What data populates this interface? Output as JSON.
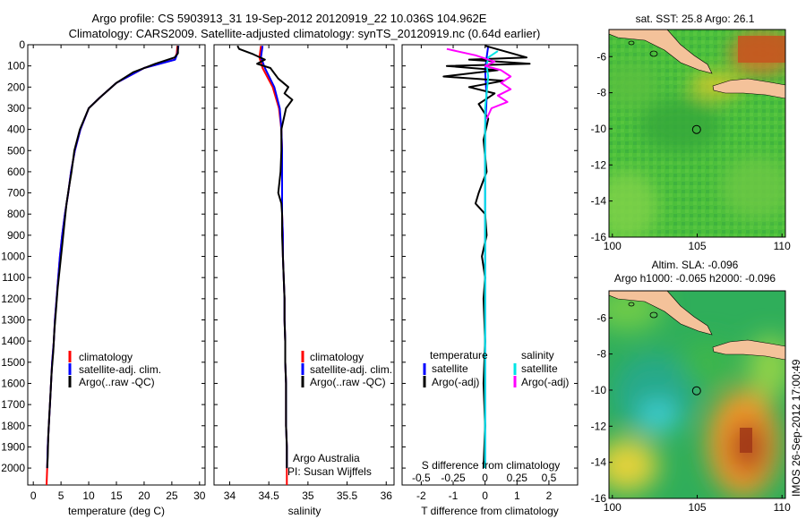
{
  "header": {
    "line1": "Argo profile: CS 5903913_31 19-Sep-2012 20120919_22 10.036S 104.962E",
    "line2": "Climatology: CARS2009. Satellite-adjusted climatology: synTS_20120919.nc (0.64d earlier)"
  },
  "timestamp": "IMOS 26-Sep-2012 17:00:49",
  "colors": {
    "climatology": "#ff0000",
    "satellite": "#0000ff",
    "argo": "#000000",
    "salinity_satellite": "#00e5e5",
    "salinity_argo": "#ff00ff",
    "land": "#f4c29a"
  },
  "chart_data": [
    {
      "id": "temperature",
      "type": "line",
      "xlabel": "temperature (deg C)",
      "xlim": [
        -1,
        31
      ],
      "xticks": [
        0,
        5,
        10,
        15,
        20,
        25,
        30
      ],
      "xticklabels": [
        "0",
        "5",
        "10",
        "15",
        "20",
        "25",
        "30"
      ],
      "ylim": [
        2080,
        0
      ],
      "yticks": [
        0,
        100,
        200,
        300,
        400,
        500,
        600,
        700,
        800,
        900,
        1000,
        1100,
        1200,
        1300,
        1400,
        1500,
        1600,
        1700,
        1800,
        1900,
        2000
      ],
      "yticklabels": [
        "0",
        "100",
        "200",
        "300",
        "400",
        "500",
        "600",
        "700",
        "800",
        "900",
        "1000",
        "1100",
        "1200",
        "1300",
        "1400",
        "1500",
        "1600",
        "1700",
        "1800",
        "1900",
        "2000"
      ],
      "legend": [
        "climatology",
        "satellite-adj. clim.",
        "Argo(..raw -QC)"
      ],
      "series": [
        {
          "name": "climatology",
          "color": "#ff0000",
          "points": [
            [
              26.0,
              5
            ],
            [
              25.9,
              40
            ],
            [
              25.5,
              70
            ],
            [
              20,
              110
            ],
            [
              15,
              180
            ],
            [
              12,
              250
            ],
            [
              10,
              300
            ],
            [
              8.5,
              400
            ],
            [
              7.5,
              500
            ],
            [
              6.8,
              600
            ],
            [
              6.3,
              700
            ],
            [
              5.7,
              800
            ],
            [
              5.2,
              900
            ],
            [
              4.8,
              1000
            ],
            [
              4.5,
              1100
            ],
            [
              4.2,
              1200
            ],
            [
              3.9,
              1300
            ],
            [
              3.7,
              1400
            ],
            [
              3.4,
              1500
            ],
            [
              3.2,
              1600
            ],
            [
              3.0,
              1700
            ],
            [
              2.8,
              1800
            ],
            [
              2.6,
              1900
            ],
            [
              2.5,
              2000
            ],
            [
              2.4,
              2080
            ]
          ]
        },
        {
          "name": "satellite-adj. clim.",
          "color": "#0000ff",
          "points": [
            [
              26.2,
              5
            ],
            [
              26.0,
              40
            ],
            [
              25.6,
              70
            ],
            [
              20,
              110
            ],
            [
              15,
              180
            ],
            [
              12,
              250
            ],
            [
              10,
              300
            ],
            [
              8.5,
              400
            ],
            [
              7.5,
              500
            ],
            [
              6.8,
              600
            ],
            [
              6.3,
              700
            ],
            [
              5.7,
              800
            ],
            [
              5.2,
              900
            ],
            [
              4.8,
              1000
            ],
            [
              4.5,
              1100
            ],
            [
              4.2,
              1200
            ],
            [
              3.9,
              1300
            ],
            [
              3.7,
              1400
            ],
            [
              3.4,
              1500
            ],
            [
              3.2,
              1600
            ],
            [
              3.0,
              1700
            ],
            [
              2.8,
              1800
            ],
            [
              2.6,
              1900
            ],
            [
              2.5,
              2000
            ]
          ]
        },
        {
          "name": "Argo(..raw -QC)",
          "color": "#000000",
          "points": [
            [
              26.1,
              5
            ],
            [
              26.1,
              40
            ],
            [
              25.5,
              60
            ],
            [
              22,
              90
            ],
            [
              18,
              130
            ],
            [
              15,
              180
            ],
            [
              12,
              250
            ],
            [
              10,
              300
            ],
            [
              8.4,
              400
            ],
            [
              7.4,
              500
            ],
            [
              6.9,
              600
            ],
            [
              6.4,
              680
            ],
            [
              6.0,
              750
            ],
            [
              5.6,
              850
            ],
            [
              5.2,
              950
            ],
            [
              4.8,
              1050
            ],
            [
              4.4,
              1150
            ],
            [
              4.1,
              1250
            ],
            [
              3.8,
              1350
            ],
            [
              3.6,
              1450
            ],
            [
              3.3,
              1550
            ],
            [
              3.1,
              1650
            ],
            [
              2.9,
              1750
            ],
            [
              2.7,
              1850
            ],
            [
              2.6,
              1950
            ],
            [
              2.5,
              2000
            ]
          ]
        }
      ]
    },
    {
      "id": "salinity",
      "type": "line",
      "xlabel": "salinity",
      "xlim": [
        33.8,
        36.1
      ],
      "xticks": [
        34,
        34.5,
        35,
        35.5,
        36
      ],
      "xticklabels": [
        "34",
        "34.5",
        "35",
        "35.5",
        "36"
      ],
      "ylim": [
        2080,
        0
      ],
      "legend": [
        "climatology",
        "satellite-adj. clim.",
        "Argo(..raw -QC)"
      ],
      "annotation": [
        "Argo Australia",
        "PI: Susan Wijffels"
      ],
      "series": [
        {
          "name": "climatology",
          "color": "#ff0000",
          "points": [
            [
              34.4,
              5
            ],
            [
              34.38,
              60
            ],
            [
              34.42,
              110
            ],
            [
              34.55,
              200
            ],
            [
              34.63,
              300
            ],
            [
              34.66,
              400
            ],
            [
              34.67,
              500
            ],
            [
              34.67,
              600
            ],
            [
              34.67,
              700
            ],
            [
              34.67,
              800
            ],
            [
              34.68,
              900
            ],
            [
              34.68,
              1000
            ],
            [
              34.69,
              1100
            ],
            [
              34.7,
              1200
            ],
            [
              34.7,
              1300
            ],
            [
              34.71,
              1400
            ],
            [
              34.71,
              1500
            ],
            [
              34.72,
              1600
            ],
            [
              34.72,
              1700
            ],
            [
              34.72,
              1800
            ],
            [
              34.73,
              1900
            ],
            [
              34.73,
              2000
            ],
            [
              34.73,
              2080
            ]
          ]
        },
        {
          "name": "satellite-adj. clim.",
          "color": "#0000ff",
          "points": [
            [
              34.42,
              5
            ],
            [
              34.4,
              60
            ],
            [
              34.45,
              110
            ],
            [
              34.57,
              200
            ],
            [
              34.64,
              300
            ],
            [
              34.66,
              400
            ],
            [
              34.67,
              500
            ],
            [
              34.67,
              600
            ],
            [
              34.67,
              700
            ],
            [
              34.67,
              800
            ],
            [
              34.68,
              900
            ],
            [
              34.68,
              1000
            ],
            [
              34.69,
              1100
            ],
            [
              34.7,
              1200
            ],
            [
              34.7,
              1300
            ],
            [
              34.71,
              1400
            ],
            [
              34.71,
              1500
            ],
            [
              34.72,
              1600
            ],
            [
              34.72,
              1700
            ],
            [
              34.72,
              1800
            ],
            [
              34.73,
              1900
            ],
            [
              34.73,
              2000
            ]
          ]
        },
        {
          "name": "Argo(..raw -QC)",
          "color": "#000000",
          "points": [
            [
              34.1,
              5
            ],
            [
              34.12,
              20
            ],
            [
              34.3,
              45
            ],
            [
              34.45,
              70
            ],
            [
              34.35,
              90
            ],
            [
              34.52,
              110
            ],
            [
              34.62,
              160
            ],
            [
              34.75,
              200
            ],
            [
              34.7,
              230
            ],
            [
              34.8,
              260
            ],
            [
              34.72,
              300
            ],
            [
              34.66,
              400
            ],
            [
              34.66,
              500
            ],
            [
              34.65,
              600
            ],
            [
              34.62,
              700
            ],
            [
              34.66,
              750
            ],
            [
              34.67,
              800
            ],
            [
              34.67,
              900
            ],
            [
              34.68,
              1000
            ],
            [
              34.69,
              1100
            ],
            [
              34.7,
              1200
            ],
            [
              34.7,
              1300
            ],
            [
              34.71,
              1400
            ],
            [
              34.71,
              1500
            ],
            [
              34.72,
              1600
            ],
            [
              34.72,
              1700
            ],
            [
              34.72,
              1800
            ],
            [
              34.73,
              1900
            ],
            [
              34.73,
              2000
            ]
          ]
        }
      ]
    },
    {
      "id": "difference",
      "type": "line",
      "xlabel": "T difference from climatology",
      "xlabel_top": "S difference from climatology",
      "xlim": [
        -2.6,
        2.9
      ],
      "xticks": [
        -2,
        -1,
        0,
        1,
        2
      ],
      "xticklabels": [
        "-2",
        "-1",
        "0",
        "1",
        "2"
      ],
      "sticks_values": [
        -0.5,
        -0.25,
        0,
        0.25,
        0.5
      ],
      "sticks": [
        "-0.5",
        "-0.25",
        "0",
        "0.25",
        "0.5"
      ],
      "ylim": [
        2080,
        0
      ],
      "legend_temperature": [
        "temperature",
        "satellite",
        "Argo(-adj)"
      ],
      "legend_salinity": [
        "salinity",
        "satellite",
        "Argo(-adj)"
      ],
      "series": [
        {
          "name": "temperature satellite",
          "color": "#0000ff",
          "points": [
            [
              0.1,
              5
            ],
            [
              0.05,
              60
            ],
            [
              0.0,
              120
            ],
            [
              0.05,
              250
            ],
            [
              0.0,
              400
            ],
            [
              0.0,
              800
            ],
            [
              0.0,
              1200
            ],
            [
              0.0,
              1600
            ],
            [
              0.0,
              2000
            ]
          ]
        },
        {
          "name": "temperature Argo(-adj)",
          "color": "#000000",
          "points": [
            [
              0.0,
              5
            ],
            [
              1.3,
              60
            ],
            [
              -0.5,
              70
            ],
            [
              1.4,
              90
            ],
            [
              -1.2,
              100
            ],
            [
              0.4,
              120
            ],
            [
              -1.3,
              150
            ],
            [
              0.6,
              170
            ],
            [
              -0.5,
              200
            ],
            [
              0.3,
              230
            ],
            [
              -0.2,
              280
            ],
            [
              0.1,
              350
            ],
            [
              -0.05,
              450
            ],
            [
              0.05,
              600
            ],
            [
              -0.2,
              700
            ],
            [
              -0.3,
              750
            ],
            [
              0.0,
              800
            ],
            [
              0.05,
              900
            ],
            [
              -0.1,
              1000
            ],
            [
              0.0,
              1100
            ],
            [
              -0.05,
              1200
            ],
            [
              0.0,
              1400
            ],
            [
              -0.05,
              1600
            ],
            [
              0.0,
              1800
            ],
            [
              -0.05,
              2000
            ]
          ]
        },
        {
          "name": "salinity satellite",
          "color": "#00e5e5",
          "points": [
            [
              0.4,
              30
            ],
            [
              0.1,
              60
            ],
            [
              0.05,
              100
            ],
            [
              0.1,
              150
            ],
            [
              0.0,
              300
            ],
            [
              0.0,
              600
            ],
            [
              0.0,
              1000
            ],
            [
              0.0,
              1500
            ],
            [
              0.0,
              2000
            ]
          ]
        },
        {
          "name": "salinity Argo(-adj)",
          "color": "#ff00ff",
          "points": [
            [
              -1.2,
              20
            ],
            [
              -0.3,
              50
            ],
            [
              0.3,
              80
            ],
            [
              0.0,
              100
            ],
            [
              0.5,
              120
            ],
            [
              0.8,
              150
            ],
            [
              0.5,
              180
            ],
            [
              0.8,
              210
            ],
            [
              0.4,
              240
            ],
            [
              0.7,
              270
            ],
            [
              0.2,
              300
            ],
            [
              0.05,
              350
            ]
          ]
        }
      ]
    },
    {
      "id": "sst-map",
      "type": "heatmap",
      "title": "sat. SST: 25.8 Argo: 26.1",
      "xlim": [
        99.8,
        110.2
      ],
      "ylim": [
        -16,
        -4.5
      ],
      "xticks": [
        100,
        105,
        110
      ],
      "xticklabels": [
        "100",
        "105",
        "110"
      ],
      "yticks": [
        -6,
        -8,
        -10,
        -12,
        -14,
        -16
      ],
      "yticklabels": [
        "-6",
        "-8",
        "-10",
        "-12",
        "-14",
        "-16"
      ],
      "argo_position": [
        104.962,
        -10.036
      ]
    },
    {
      "id": "sla-map",
      "type": "heatmap",
      "title_line1": "Altim. SLA: -0.096",
      "title_line2": "Argo h1000: -0.065 h2000: -0.096",
      "xlim": [
        99.8,
        110.2
      ],
      "ylim": [
        -16,
        -4.5
      ],
      "xticks": [
        100,
        105,
        110
      ],
      "xticklabels": [
        "100",
        "105",
        "110"
      ],
      "yticks": [
        -6,
        -8,
        -10,
        -12,
        -14,
        -16
      ],
      "yticklabels": [
        "-6",
        "-8",
        "-10",
        "-12",
        "-14",
        "-16"
      ],
      "argo_position": [
        104.962,
        -10.036
      ]
    }
  ]
}
